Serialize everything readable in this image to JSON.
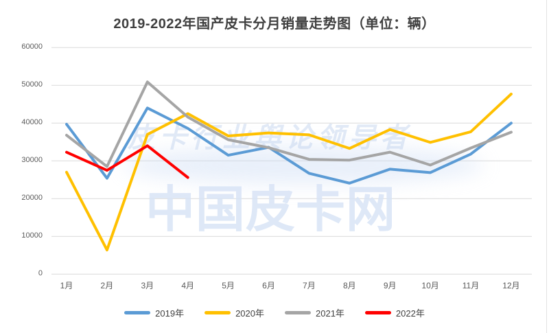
{
  "title": "2019-2022年国产皮卡分月销量走势图（单位：辆）",
  "watermark": {
    "line1": "皮卡行业舆论领导者",
    "line2": "中国皮卡网"
  },
  "colors": {
    "grid": "#d9d9d9",
    "axis_text": "#595959",
    "title_text": "#3f3f3f",
    "legend_text": "#404040",
    "right_border": "#e2e2e2"
  },
  "chart_data": {
    "type": "line",
    "title": "2019-2022年国产皮卡分月销量走势图（单位：辆）",
    "xlabel": "",
    "ylabel": "",
    "categories": [
      "1月",
      "2月",
      "3月",
      "4月",
      "5月",
      "6月",
      "7月",
      "8月",
      "9月",
      "10月",
      "11月",
      "12月"
    ],
    "y_ticks": [
      60000,
      50000,
      40000,
      30000,
      20000,
      10000,
      0
    ],
    "ylim": [
      0,
      60000
    ],
    "grid": "horizontal",
    "legend_position": "bottom",
    "series": [
      {
        "name": "2019年",
        "color": "#5B9BD5",
        "values": [
          39700,
          25400,
          44000,
          38600,
          31500,
          33600,
          26700,
          24100,
          27800,
          26900,
          31800,
          40000
        ]
      },
      {
        "name": "2020年",
        "color": "#FFC000",
        "values": [
          27000,
          6400,
          37000,
          42500,
          36600,
          37400,
          36900,
          33300,
          38300,
          34900,
          37700,
          47700
        ]
      },
      {
        "name": "2021年",
        "color": "#A5A5A5",
        "values": [
          36800,
          28500,
          50900,
          41600,
          35600,
          33500,
          30400,
          30200,
          32300,
          28900,
          33400,
          37600
        ]
      },
      {
        "name": "2022年",
        "color": "#FF0000",
        "values": [
          32300,
          27500,
          34000,
          25600,
          null,
          null,
          null,
          null,
          null,
          null,
          null,
          null
        ]
      }
    ]
  }
}
